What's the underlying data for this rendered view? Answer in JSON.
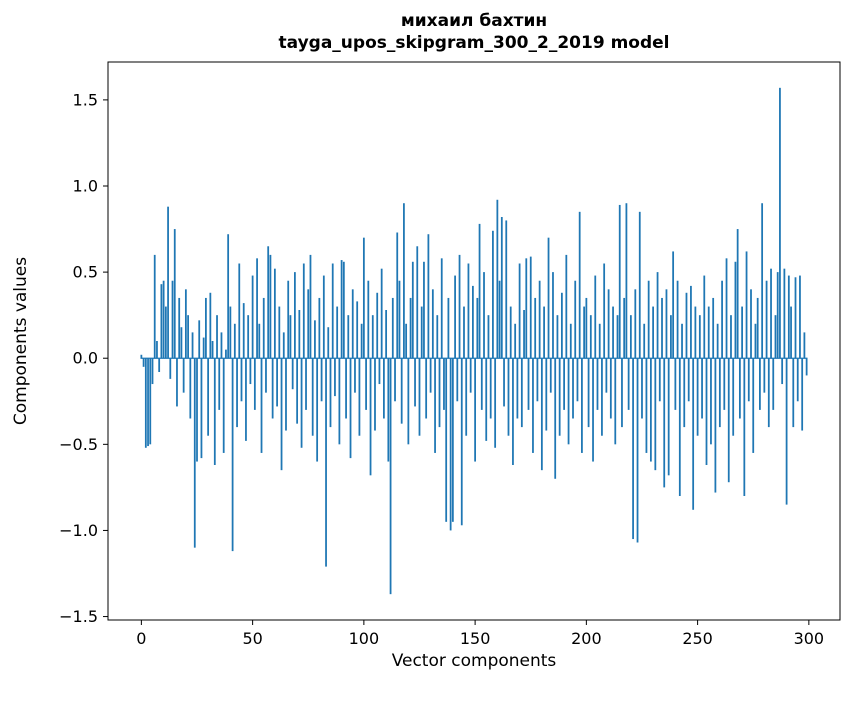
{
  "chart_data": {
    "type": "bar",
    "title": "михаил бахтин",
    "subtitle": "tayga_upos_skipgram_300_2_2019 model",
    "xlabel": "Vector components",
    "ylabel": "Components values",
    "xlim": [
      -15,
      314
    ],
    "ylim": [
      -1.52,
      1.72
    ],
    "xticks": [
      0,
      50,
      100,
      150,
      200,
      250,
      300
    ],
    "yticks": [
      -1.5,
      -1.0,
      -0.5,
      0.0,
      0.5,
      1.0,
      1.5
    ],
    "bar_color": "#1f77b4",
    "axis_color": "#000000",
    "x_start": 0,
    "bar_width_data_units": 0.8,
    "values": [
      0.02,
      -0.05,
      -0.52,
      -0.51,
      -0.5,
      -0.15,
      0.6,
      0.1,
      -0.08,
      0.43,
      0.45,
      0.3,
      0.88,
      -0.12,
      0.45,
      0.75,
      -0.28,
      0.35,
      0.18,
      -0.2,
      0.4,
      0.25,
      -0.35,
      0.15,
      -1.1,
      -0.6,
      0.22,
      -0.58,
      0.12,
      0.35,
      -0.45,
      0.38,
      0.1,
      -0.62,
      0.25,
      -0.3,
      0.15,
      -0.55,
      0.05,
      0.72,
      0.3,
      -1.12,
      0.2,
      -0.4,
      0.55,
      -0.25,
      0.32,
      -0.48,
      0.25,
      -0.15,
      0.48,
      -0.3,
      0.58,
      0.2,
      -0.55,
      0.35,
      -0.2,
      0.65,
      0.6,
      -0.35,
      0.52,
      -0.28,
      0.3,
      -0.65,
      0.15,
      -0.42,
      0.45,
      0.25,
      -0.18,
      0.5,
      -0.38,
      0.28,
      -0.52,
      0.55,
      -0.3,
      0.4,
      0.6,
      -0.45,
      0.22,
      -0.6,
      0.35,
      -0.25,
      0.48,
      -1.21,
      0.18,
      -0.4,
      0.55,
      -0.22,
      0.3,
      -0.5,
      0.57,
      0.56,
      -0.35,
      0.25,
      -0.58,
      0.4,
      -0.2,
      0.33,
      -0.45,
      0.2,
      0.7,
      -0.3,
      0.45,
      -0.68,
      0.25,
      -0.42,
      0.38,
      -0.15,
      0.52,
      -0.35,
      0.28,
      -0.6,
      -1.37,
      0.35,
      -0.25,
      0.73,
      0.45,
      -0.38,
      0.9,
      0.2,
      -0.5,
      0.35,
      0.56,
      -0.28,
      0.65,
      -0.45,
      0.3,
      0.56,
      -0.35,
      0.72,
      -0.2,
      0.4,
      -0.55,
      0.25,
      -0.4,
      0.58,
      -0.3,
      -0.95,
      0.35,
      -1.0,
      -0.95,
      0.48,
      -0.25,
      0.6,
      -0.97,
      0.3,
      -0.45,
      0.55,
      -0.2,
      0.42,
      -0.6,
      0.35,
      0.78,
      -0.3,
      0.5,
      -0.48,
      0.25,
      -0.35,
      0.74,
      -0.52,
      0.92,
      0.45,
      0.82,
      -0.28,
      0.8,
      -0.45,
      0.3,
      -0.62,
      0.2,
      -0.35,
      0.55,
      -0.4,
      0.28,
      0.58,
      -0.3,
      0.59,
      -0.55,
      0.35,
      -0.25,
      0.45,
      -0.65,
      0.3,
      -0.42,
      0.7,
      -0.2,
      0.5,
      -0.7,
      0.25,
      -0.45,
      0.38,
      -0.3,
      0.6,
      -0.5,
      0.2,
      -0.35,
      0.45,
      -0.25,
      0.85,
      -0.55,
      0.3,
      0.35,
      -0.4,
      0.25,
      -0.6,
      0.48,
      -0.3,
      0.2,
      -0.45,
      0.55,
      -0.2,
      0.4,
      -0.35,
      0.3,
      -0.5,
      0.25,
      0.89,
      -0.4,
      0.35,
      0.9,
      -0.3,
      0.25,
      -1.05,
      0.4,
      -1.07,
      0.85,
      -0.35,
      0.2,
      -0.55,
      0.45,
      -0.6,
      0.3,
      -0.65,
      0.5,
      -0.25,
      0.35,
      -0.75,
      0.4,
      -0.68,
      0.25,
      0.62,
      -0.3,
      0.45,
      -0.8,
      0.2,
      -0.4,
      0.38,
      -0.25,
      0.42,
      -0.88,
      0.3,
      -0.45,
      0.25,
      -0.35,
      0.48,
      -0.62,
      0.3,
      -0.5,
      0.35,
      -0.78,
      0.2,
      -0.4,
      0.45,
      -0.3,
      0.58,
      -0.72,
      0.25,
      -0.45,
      0.56,
      0.75,
      -0.35,
      0.3,
      -0.8,
      0.62,
      -0.25,
      0.4,
      -0.55,
      0.2,
      0.35,
      -0.3,
      0.9,
      -0.2,
      0.45,
      -0.4,
      0.52,
      -0.3,
      0.25,
      0.5,
      1.57,
      -0.15,
      0.52,
      -0.85,
      0.48,
      0.3,
      -0.4,
      0.47,
      -0.25,
      0.48,
      -0.42,
      0.15,
      -0.1
    ]
  }
}
